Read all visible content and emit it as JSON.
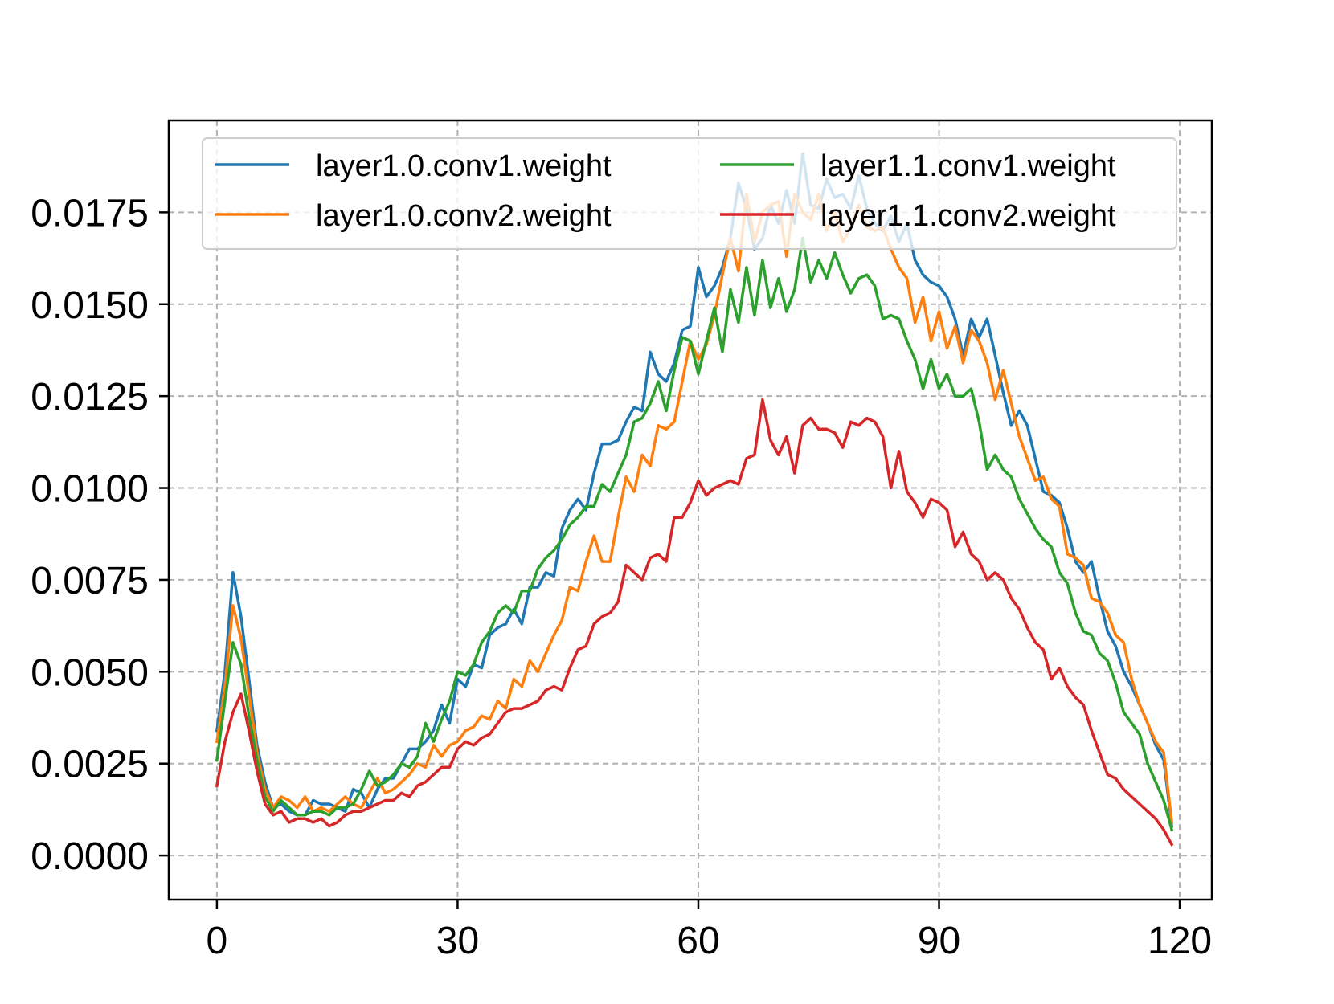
{
  "chart_data": {
    "type": "line",
    "title": "",
    "xlabel": "",
    "ylabel": "",
    "xlim": [
      -6,
      124
    ],
    "ylim": [
      -0.0012,
      0.02
    ],
    "grid": true,
    "legend_position": "top (2 columns)",
    "x_ticks": [
      0,
      30,
      60,
      90,
      120
    ],
    "x_tick_labels": [
      "0",
      "30",
      "60",
      "90",
      "120"
    ],
    "y_ticks": [
      0.0,
      0.0025,
      0.005,
      0.0075,
      0.01,
      0.0125,
      0.015,
      0.0175
    ],
    "y_tick_labels": [
      "0.0000",
      "0.0025",
      "0.0050",
      "0.0075",
      "0.0100",
      "0.0125",
      "0.0150",
      "0.0175"
    ],
    "x": [
      0,
      1,
      2,
      3,
      4,
      5,
      6,
      7,
      8,
      9,
      10,
      11,
      12,
      13,
      14,
      15,
      16,
      17,
      18,
      19,
      20,
      21,
      22,
      23,
      24,
      25,
      26,
      27,
      28,
      29,
      30,
      31,
      32,
      33,
      34,
      35,
      36,
      37,
      38,
      39,
      40,
      41,
      42,
      43,
      44,
      45,
      46,
      47,
      48,
      49,
      50,
      51,
      52,
      53,
      54,
      55,
      56,
      57,
      58,
      59,
      60,
      61,
      62,
      63,
      64,
      65,
      66,
      67,
      68,
      69,
      70,
      71,
      72,
      73,
      74,
      75,
      76,
      77,
      78,
      79,
      80,
      81,
      82,
      83,
      84,
      85,
      86,
      87,
      88,
      89,
      90,
      91,
      92,
      93,
      94,
      95,
      96,
      97,
      98,
      99,
      100,
      101,
      102,
      103,
      104,
      105,
      106,
      107,
      108,
      109,
      110,
      111,
      112,
      113,
      114,
      115,
      116,
      117,
      118,
      119
    ],
    "series": [
      {
        "name": "layer1.0.conv1.weight",
        "color": "#1f77b4",
        "values": [
          0.0034,
          0.005,
          0.0077,
          0.0065,
          0.0048,
          0.003,
          0.002,
          0.0013,
          0.0014,
          0.0012,
          0.0011,
          0.0011,
          0.0015,
          0.0014,
          0.0014,
          0.0013,
          0.0012,
          0.0018,
          0.0017,
          0.0013,
          0.0018,
          0.0021,
          0.0021,
          0.0025,
          0.0029,
          0.0029,
          0.0031,
          0.0034,
          0.0041,
          0.0036,
          0.0048,
          0.0046,
          0.0052,
          0.0051,
          0.006,
          0.0062,
          0.0063,
          0.0067,
          0.0063,
          0.0073,
          0.0073,
          0.0077,
          0.0076,
          0.0089,
          0.0094,
          0.0097,
          0.0094,
          0.0104,
          0.0112,
          0.0112,
          0.0113,
          0.0118,
          0.0122,
          0.0121,
          0.0137,
          0.0131,
          0.0129,
          0.0134,
          0.0143,
          0.0144,
          0.016,
          0.0152,
          0.0155,
          0.016,
          0.0168,
          0.0183,
          0.0176,
          0.0165,
          0.0168,
          0.0177,
          0.0172,
          0.0181,
          0.0172,
          0.0191,
          0.0177,
          0.0176,
          0.0184,
          0.0179,
          0.018,
          0.0176,
          0.0185,
          0.0176,
          0.0172,
          0.017,
          0.0174,
          0.0167,
          0.0172,
          0.0162,
          0.0158,
          0.0156,
          0.0155,
          0.0152,
          0.0146,
          0.0136,
          0.0146,
          0.0141,
          0.0146,
          0.0136,
          0.0126,
          0.0117,
          0.0121,
          0.0117,
          0.0108,
          0.0099,
          0.0098,
          0.0096,
          0.0089,
          0.008,
          0.0077,
          0.008,
          0.007,
          0.0061,
          0.0057,
          0.005,
          0.0046,
          0.0041,
          0.0036,
          0.003,
          0.0026,
          0.0008
        ]
      },
      {
        "name": "layer1.0.conv2.weight",
        "color": "#ff7f0e",
        "values": [
          0.0031,
          0.0046,
          0.0068,
          0.0059,
          0.0044,
          0.0028,
          0.0018,
          0.0013,
          0.0016,
          0.0015,
          0.0013,
          0.0016,
          0.0012,
          0.0013,
          0.0012,
          0.0014,
          0.0016,
          0.0014,
          0.0013,
          0.0017,
          0.0021,
          0.0017,
          0.0018,
          0.002,
          0.0022,
          0.0025,
          0.0024,
          0.003,
          0.0027,
          0.003,
          0.0031,
          0.0034,
          0.0035,
          0.0038,
          0.0037,
          0.0042,
          0.004,
          0.0048,
          0.0046,
          0.0053,
          0.005,
          0.0055,
          0.006,
          0.0064,
          0.0073,
          0.0072,
          0.008,
          0.0087,
          0.008,
          0.008,
          0.0092,
          0.0103,
          0.0099,
          0.0109,
          0.0106,
          0.0117,
          0.0116,
          0.0118,
          0.0129,
          0.014,
          0.0135,
          0.0139,
          0.0147,
          0.0158,
          0.0168,
          0.0159,
          0.018,
          0.0167,
          0.0175,
          0.0177,
          0.0178,
          0.0163,
          0.018,
          0.0175,
          0.0173,
          0.018,
          0.017,
          0.0175,
          0.0167,
          0.0171,
          0.0177,
          0.0171,
          0.017,
          0.0171,
          0.0165,
          0.016,
          0.0157,
          0.0145,
          0.0152,
          0.014,
          0.0148,
          0.0138,
          0.0144,
          0.0134,
          0.0143,
          0.014,
          0.0134,
          0.0124,
          0.0132,
          0.0123,
          0.0114,
          0.0108,
          0.0102,
          0.0103,
          0.0097,
          0.0095,
          0.0082,
          0.0081,
          0.0079,
          0.007,
          0.0069,
          0.0066,
          0.006,
          0.0058,
          0.0048,
          0.0041,
          0.0036,
          0.0031,
          0.0028,
          0.0009
        ]
      },
      {
        "name": "layer1.1.conv1.weight",
        "color": "#2ca02c",
        "values": [
          0.0026,
          0.0042,
          0.0058,
          0.0052,
          0.0038,
          0.0026,
          0.0016,
          0.0012,
          0.0015,
          0.0013,
          0.0011,
          0.0011,
          0.0012,
          0.0012,
          0.0011,
          0.0013,
          0.0013,
          0.0014,
          0.0018,
          0.0023,
          0.0019,
          0.002,
          0.0022,
          0.0025,
          0.0024,
          0.0027,
          0.0036,
          0.0031,
          0.0037,
          0.0042,
          0.005,
          0.0049,
          0.0052,
          0.0058,
          0.0061,
          0.0066,
          0.0068,
          0.0066,
          0.0072,
          0.0072,
          0.0078,
          0.0081,
          0.0083,
          0.0086,
          0.009,
          0.0092,
          0.0095,
          0.0095,
          0.0101,
          0.0099,
          0.0104,
          0.0109,
          0.0118,
          0.0119,
          0.0123,
          0.0129,
          0.0121,
          0.0132,
          0.0141,
          0.014,
          0.0131,
          0.014,
          0.0149,
          0.0137,
          0.0154,
          0.0145,
          0.016,
          0.0147,
          0.0162,
          0.0149,
          0.0157,
          0.0148,
          0.0154,
          0.0168,
          0.0156,
          0.0162,
          0.0157,
          0.0164,
          0.0158,
          0.0153,
          0.0157,
          0.0158,
          0.0155,
          0.0146,
          0.0147,
          0.0146,
          0.014,
          0.0135,
          0.0127,
          0.0135,
          0.0127,
          0.0131,
          0.0125,
          0.0125,
          0.0127,
          0.0118,
          0.0105,
          0.0109,
          0.0105,
          0.0103,
          0.0097,
          0.0093,
          0.0089,
          0.0086,
          0.0084,
          0.0077,
          0.0074,
          0.0066,
          0.0061,
          0.006,
          0.0055,
          0.0053,
          0.0047,
          0.0039,
          0.0036,
          0.0033,
          0.0025,
          0.002,
          0.0015,
          0.0007
        ]
      },
      {
        "name": "layer1.1.conv2.weight",
        "color": "#d62728",
        "values": [
          0.0019,
          0.0031,
          0.0039,
          0.0044,
          0.0034,
          0.0023,
          0.0014,
          0.0011,
          0.0012,
          0.0009,
          0.001,
          0.001,
          0.0009,
          0.001,
          0.0008,
          0.0009,
          0.0011,
          0.0012,
          0.0012,
          0.0013,
          0.0014,
          0.0015,
          0.0015,
          0.0017,
          0.0016,
          0.0019,
          0.002,
          0.0022,
          0.0024,
          0.0024,
          0.0029,
          0.0031,
          0.003,
          0.0032,
          0.0033,
          0.0036,
          0.0039,
          0.004,
          0.004,
          0.0041,
          0.0042,
          0.0045,
          0.0046,
          0.0045,
          0.0051,
          0.0056,
          0.0057,
          0.0063,
          0.0065,
          0.0066,
          0.0069,
          0.0079,
          0.0077,
          0.0075,
          0.0081,
          0.0082,
          0.008,
          0.0092,
          0.0092,
          0.0096,
          0.0102,
          0.0098,
          0.01,
          0.0101,
          0.0102,
          0.0101,
          0.0108,
          0.0109,
          0.0124,
          0.0113,
          0.0109,
          0.0114,
          0.0104,
          0.0117,
          0.0119,
          0.0116,
          0.0116,
          0.0115,
          0.0111,
          0.0118,
          0.0117,
          0.0119,
          0.0118,
          0.0114,
          0.01,
          0.011,
          0.0099,
          0.0096,
          0.0092,
          0.0097,
          0.0096,
          0.0094,
          0.0084,
          0.0088,
          0.0082,
          0.008,
          0.0075,
          0.0077,
          0.0075,
          0.007,
          0.0067,
          0.0062,
          0.0058,
          0.0056,
          0.0048,
          0.0051,
          0.0046,
          0.0043,
          0.0041,
          0.0034,
          0.0028,
          0.0022,
          0.0021,
          0.0018,
          0.0016,
          0.0014,
          0.0012,
          0.001,
          0.0007,
          0.0003
        ]
      }
    ]
  }
}
